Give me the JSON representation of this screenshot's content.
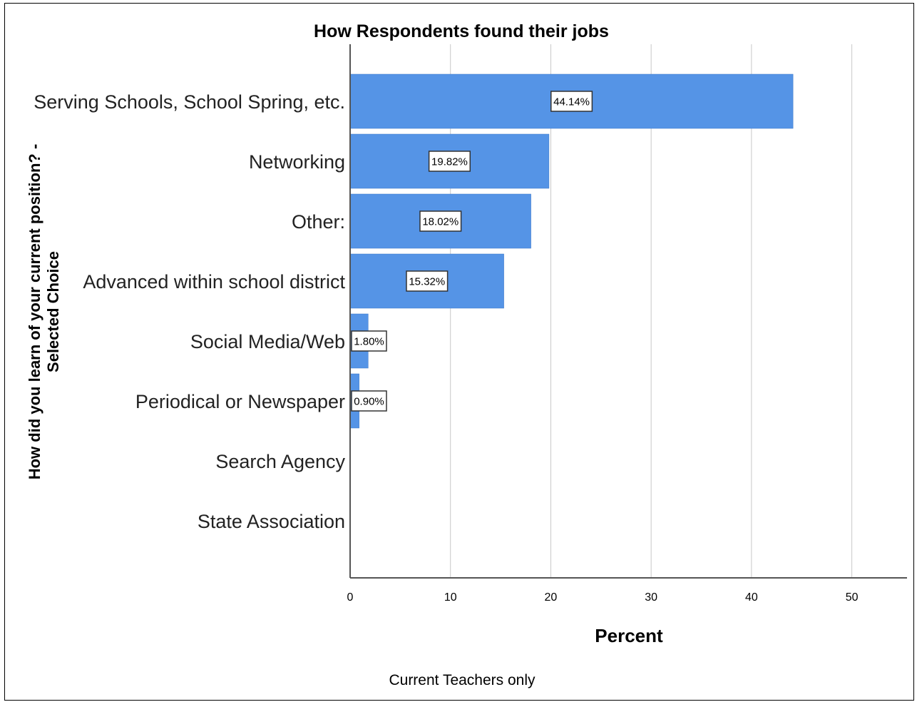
{
  "chart_data": {
    "type": "bar",
    "orientation": "horizontal",
    "title": "How Respondents found their jobs",
    "xlabel": "Percent",
    "ylabel_lines": [
      "How did you learn of your current position? -",
      "Selected Choice"
    ],
    "footnote": "Current Teachers only",
    "categories": [
      "Serving Schools, School Spring, etc.",
      "Networking",
      "Other:",
      "Advanced within school district",
      "Social Media/Web",
      "Periodical or Newspaper",
      "Search Agency",
      "State Association"
    ],
    "values": [
      44.14,
      19.82,
      18.02,
      15.32,
      1.8,
      0.9,
      0,
      0
    ],
    "data_labels": [
      "44.14%",
      "19.82%",
      "18.02%",
      "15.32%",
      "1.80%",
      "0.90%",
      "",
      ""
    ],
    "x_ticks": [
      0,
      10,
      20,
      30,
      40,
      50
    ],
    "x_tick_labels": [
      "0",
      "10",
      "20",
      "30",
      "40",
      "50"
    ],
    "xlim": [
      0,
      55.5
    ],
    "grid": true,
    "bar_color": "#5594e6",
    "grid_color": "#c8c8c8"
  }
}
